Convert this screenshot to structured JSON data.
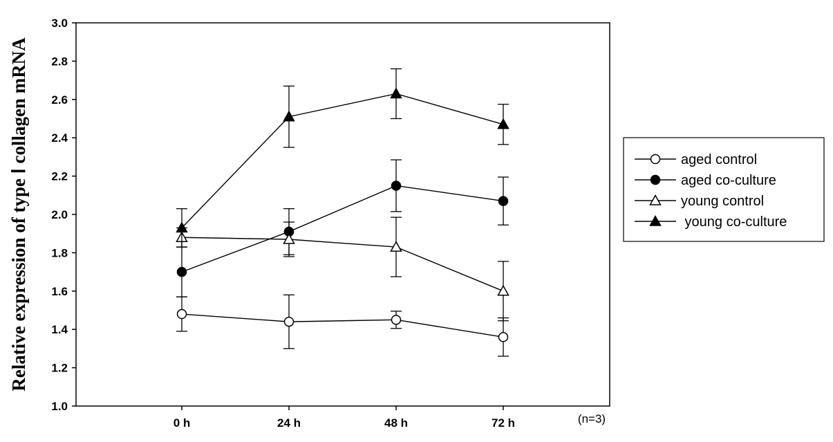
{
  "chart_data": {
    "type": "line",
    "categories": [
      "0 h",
      "24 h",
      "48 h",
      "72 h"
    ],
    "ylabel": "Relative expression of type Ⅰ collagen mRNA",
    "xlabel": "",
    "ylim": [
      1.0,
      3.0
    ],
    "yticks": [
      "1.0",
      "1.2",
      "1.4",
      "1.6",
      "1.8",
      "2.0",
      "2.2",
      "2.4",
      "2.6",
      "2.8",
      "3.0"
    ],
    "annotation": "(n=3)",
    "grid": false,
    "legend_position": "right",
    "series": [
      {
        "name": "aged control",
        "marker": "circle-open",
        "values": [
          1.48,
          1.44,
          1.45,
          1.36
        ],
        "errors": [
          0.09,
          0.14,
          0.045,
          0.1
        ]
      },
      {
        "name": "aged co-culture",
        "marker": "circle-filled",
        "values": [
          1.7,
          1.91,
          2.15,
          2.07
        ],
        "errors": [
          0.13,
          0.12,
          0.135,
          0.125
        ]
      },
      {
        "name": "young control",
        "marker": "triangle-open",
        "values": [
          1.88,
          1.87,
          1.83,
          1.6
        ],
        "errors": [
          0.05,
          0.09,
          0.155,
          0.155
        ]
      },
      {
        "name": " young co-culture",
        "marker": "triangle-filled",
        "values": [
          1.93,
          2.51,
          2.63,
          2.47
        ],
        "errors": [
          0.1,
          0.16,
          0.13,
          0.105
        ]
      }
    ]
  }
}
